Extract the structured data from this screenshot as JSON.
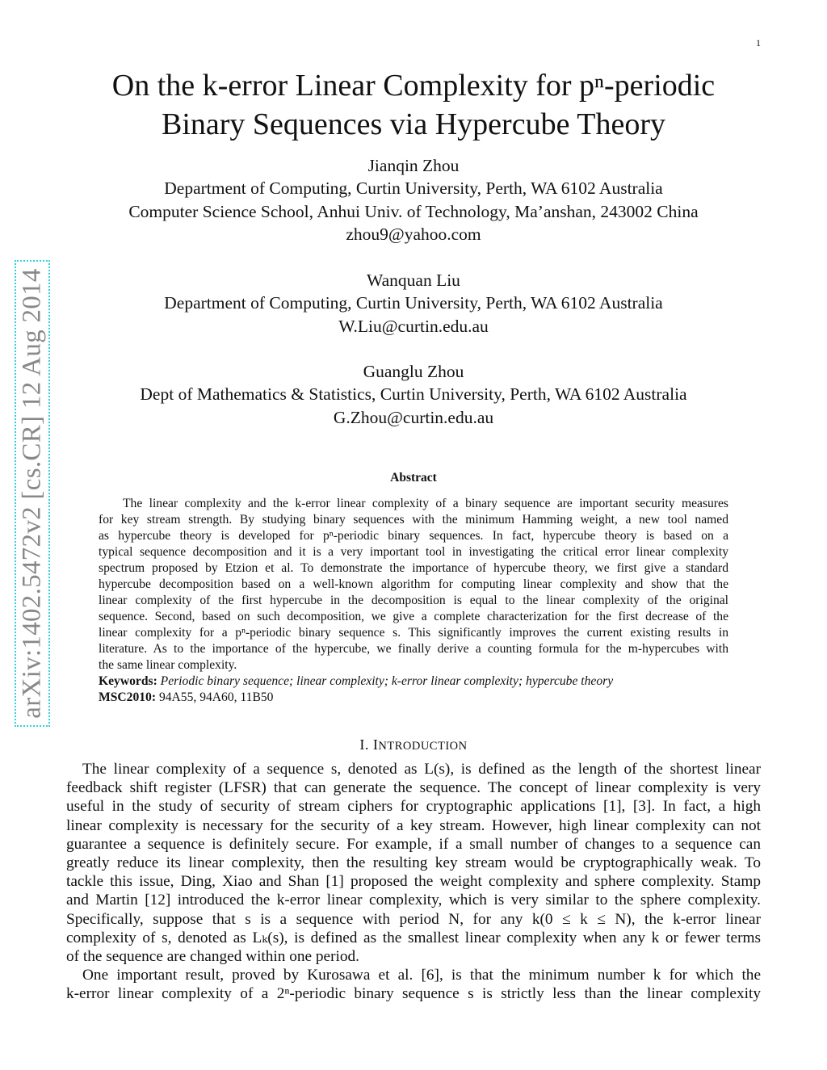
{
  "page_number": "1",
  "title": [
    "On the k-error Linear Complexity for pⁿ-periodic",
    "Binary Sequences via Hypercube Theory"
  ],
  "authors": [
    {
      "lines": [
        "Jianqin Zhou",
        "Department of Computing, Curtin University, Perth, WA 6102 Australia",
        "Computer Science School, Anhui Univ. of Technology, Ma’anshan, 243002 China",
        "zhou9@yahoo.com"
      ]
    },
    {
      "lines": [
        "Wanquan Liu",
        "Department of Computing, Curtin University, Perth, WA 6102 Australia",
        "W.Liu@curtin.edu.au"
      ]
    },
    {
      "lines": [
        "Guanglu Zhou",
        "Dept of Mathematics & Statistics, Curtin University, Perth, WA 6102 Australia",
        "G.Zhou@curtin.edu.au"
      ]
    }
  ],
  "arxiv_stamp": "arXiv:1402.5472v2  [cs.CR]  12 Aug 2014",
  "abstract": {
    "heading": "Abstract",
    "lines": [
      "The linear complexity and the k-error linear complexity of a binary sequence are important security measures",
      "for key stream strength. By studying binary sequences with the minimum Hamming weight, a new tool named",
      "as hypercube theory is developed for pⁿ-periodic binary sequences. In fact, hypercube theory is based on a",
      "typical sequence decomposition and it is a very important tool in investigating the critical error linear complexity",
      "spectrum proposed by Etzion et al. To demonstrate the importance of hypercube theory, we first give a standard",
      "hypercube decomposition based on a well-known algorithm for computing linear complexity and show that the",
      "linear complexity of the first hypercube in the decomposition is equal to the linear complexity of the original",
      "sequence. Second, based on such decomposition, we give a complete characterization for the first decrease of the",
      "linear complexity for a pⁿ-periodic binary sequence s. This significantly improves the current existing results in",
      "literature. As to the importance of the hypercube, we finally derive a counting formula for the m-hypercubes with",
      "the same linear complexity."
    ],
    "keywords_label": "Keywords:",
    "keywords": "Periodic binary sequence; linear complexity; k-error linear complexity; hypercube theory",
    "msc_label": "MSC2010:",
    "msc": "94A55, 94A60, 11B50"
  },
  "section": {
    "number": "I. I",
    "title": "NTRODUCTION"
  },
  "intro_lines": [
    "The linear complexity of a sequence s, denoted as L(s), is defined as the length of the shortest linear",
    "feedback shift register (LFSR) that can generate the sequence. The concept of linear complexity is very",
    "useful in the study of security of stream ciphers for cryptographic applications [1], [3]. In fact, a high",
    "linear complexity is necessary for the security of a key stream. However, high linear complexity can not",
    "guarantee a sequence is definitely secure. For example, if a small number of changes to a sequence can",
    "greatly reduce its linear complexity, then the resulting key stream would be cryptographically weak. To",
    "tackle this issue, Ding, Xiao and Shan [1] proposed the weight complexity and sphere complexity. Stamp",
    "and Martin [12] introduced the k-error linear complexity, which is very similar to the sphere complexity.",
    "Specifically, suppose that s is a sequence with period N, for any k(0 ≤ k ≤ N), the k-error linear",
    "complexity of s, denoted as Lₖ(s), is defined as the smallest linear complexity when any k or fewer terms",
    "of the sequence are changed within one period.",
    "One important result, proved by Kurosawa et al. [6], is that the minimum number k for which the",
    "k-error linear complexity of a 2ⁿ-periodic binary sequence s is strictly less than the linear complexity"
  ]
}
